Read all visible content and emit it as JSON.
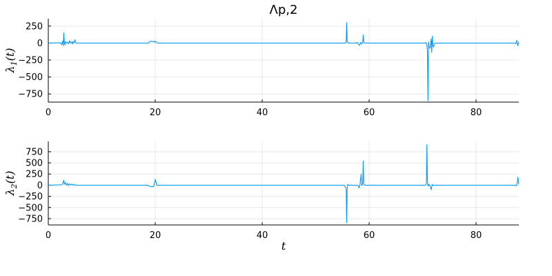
{
  "colors": {
    "series": "#009AFA",
    "text": "#000000",
    "grid": "#000000",
    "background": "#ffffff"
  },
  "chart_data": [
    {
      "type": "line",
      "title": "Λp,2",
      "xlabel": "",
      "ylabel_main": "λ",
      "ylabel_sub": "1",
      "ylabel_tail": "(t)",
      "xlim": [
        0,
        88
      ],
      "ylim": [
        -870,
        360
      ],
      "xticks": [
        0,
        20,
        40,
        60,
        80
      ],
      "yticks": [
        250,
        0,
        -250,
        -500,
        -750
      ],
      "grid": true,
      "legend": "none",
      "series": [
        {
          "x": [
            0,
            2.3,
            2.5,
            2.7,
            2.8,
            2.9,
            3.0,
            3.1,
            3.2,
            3.4,
            3.6,
            3.8,
            4.0,
            4.1,
            4.3,
            4.5,
            4.6,
            4.8,
            5.0,
            5.1,
            5.3,
            5.5,
            18.7,
            18.9,
            19.0,
            19.5,
            19.8,
            20.0,
            20.2,
            20.5,
            55.5,
            55.7,
            55.8,
            55.9,
            56.1,
            56.3,
            57.5,
            57.8,
            58.0,
            58.2,
            58.4,
            58.6,
            58.8,
            58.9,
            59.0,
            59.2,
            70.4,
            70.6,
            70.8,
            70.9,
            71.0,
            71.1,
            71.2,
            71.4,
            71.6,
            71.7,
            71.8,
            71.9,
            72.0,
            72.3,
            87.2,
            87.4,
            87.6,
            87.8,
            88
          ],
          "y": [
            0,
            5,
            -25,
            30,
            -40,
            150,
            10,
            -30,
            20,
            0,
            15,
            -10,
            35,
            5,
            20,
            -15,
            25,
            0,
            50,
            10,
            -5,
            0,
            0,
            15,
            25,
            25,
            15,
            30,
            10,
            0,
            0,
            10,
            300,
            20,
            0,
            0,
            0,
            10,
            -20,
            -35,
            10,
            -15,
            20,
            120,
            10,
            0,
            0,
            10,
            -30,
            -130,
            -850,
            20,
            -50,
            -80,
            60,
            -140,
            100,
            -20,
            -60,
            0,
            0,
            -10,
            40,
            -40,
            20
          ]
        }
      ]
    },
    {
      "type": "line",
      "title": "",
      "xlabel": "t",
      "ylabel_main": "λ",
      "ylabel_sub": "2",
      "ylabel_tail": "(t)",
      "xlim": [
        0,
        88
      ],
      "ylim": [
        -890,
        980
      ],
      "xticks": [
        0,
        20,
        40,
        60,
        80
      ],
      "yticks": [
        750,
        500,
        250,
        0,
        -250,
        -500,
        -750
      ],
      "grid": true,
      "legend": "none",
      "series": [
        {
          "x": [
            0,
            2.5,
            2.7,
            2.9,
            3.0,
            3.2,
            3.4,
            3.6,
            3.8,
            4.0,
            4.2,
            4.4,
            4.6,
            4.8,
            5.0,
            5.2,
            18.6,
            18.8,
            19.0,
            19.3,
            19.5,
            19.7,
            19.8,
            20.0,
            20.3,
            55.3,
            55.5,
            55.7,
            55.8,
            55.9,
            56.0,
            56.2,
            57.8,
            58.0,
            58.1,
            58.3,
            58.5,
            58.6,
            58.8,
            58.9,
            59.0,
            59.2,
            70.5,
            70.7,
            70.8,
            70.9,
            71.0,
            71.2,
            71.4,
            71.6,
            71.8,
            72.0,
            72.2,
            87.3,
            87.5,
            87.7,
            87.8,
            88
          ],
          "y": [
            0,
            10,
            30,
            110,
            20,
            60,
            0,
            40,
            -10,
            30,
            10,
            25,
            0,
            20,
            5,
            0,
            0,
            -20,
            -30,
            -35,
            -35,
            -30,
            20,
            130,
            0,
            0,
            -30,
            -80,
            -840,
            -50,
            20,
            0,
            0,
            -20,
            -60,
            30,
            250,
            -10,
            40,
            540,
            20,
            0,
            0,
            30,
            910,
            100,
            -20,
            20,
            -20,
            -100,
            20,
            -10,
            0,
            0,
            -15,
            50,
            180,
            20
          ]
        }
      ]
    }
  ]
}
